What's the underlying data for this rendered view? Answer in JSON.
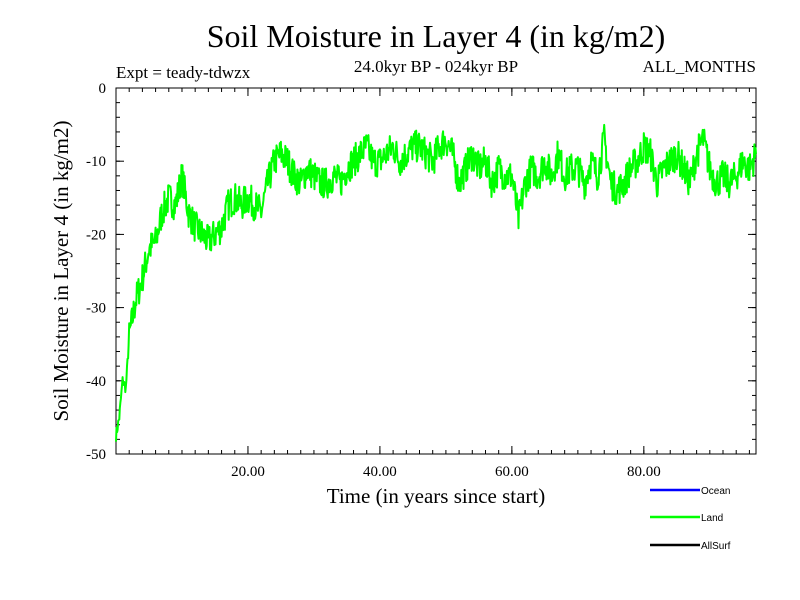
{
  "chart_data": {
    "type": "line",
    "title": "Soil Moisture in Layer 4 (in kg/m2)",
    "subtitle": "24.0kyr BP - 024kyr BP",
    "experiment": "Expt = teady-tdwzx",
    "months": "ALL_MONTHS",
    "xlabel": "Time (in years since start)",
    "ylabel": "Soil Moisture in Layer 4 (in kg/m2)",
    "xlim": [
      0,
      97
    ],
    "ylim": [
      -50,
      0
    ],
    "x_ticks": [
      20,
      40,
      60,
      80
    ],
    "x_tick_labels": [
      "20.00",
      "40.00",
      "60.00",
      "80.00"
    ],
    "y_ticks": [
      0,
      -10,
      -20,
      -30,
      -40,
      -50
    ],
    "y_tick_labels": [
      "0",
      "-10",
      "-20",
      "-30",
      "-40",
      "-50"
    ],
    "grid": false,
    "legend_position": "bottom-right",
    "series": [
      {
        "name": "Ocean",
        "color": "#0000ff",
        "values": []
      },
      {
        "name": "Land",
        "color": "#00ff00",
        "x": [
          0,
          0.5,
          1,
          1.5,
          2,
          3,
          4,
          5,
          6,
          7,
          8,
          9,
          10,
          11,
          12,
          13,
          14,
          15,
          16,
          17,
          18,
          19,
          20,
          21,
          22,
          23,
          24,
          25,
          26,
          27,
          28,
          29,
          30,
          31,
          32,
          33,
          34,
          35,
          36,
          37,
          38,
          39,
          40,
          41,
          42,
          43,
          44,
          45,
          46,
          47,
          48,
          49,
          50,
          51,
          52,
          53,
          54,
          55,
          56,
          57,
          58,
          59,
          60,
          61,
          62,
          63,
          64,
          65,
          66,
          67,
          68,
          69,
          70,
          71,
          72,
          73,
          74,
          75,
          76,
          77,
          78,
          79,
          80,
          81,
          82,
          83,
          84,
          85,
          86,
          87,
          88,
          89,
          90,
          91,
          92,
          93,
          94,
          95,
          96,
          97
        ],
        "values": [
          -47.5,
          -45,
          -40,
          -41,
          -34,
          -29,
          -26,
          -22,
          -21,
          -17,
          -15,
          -16,
          -12,
          -17,
          -19,
          -20,
          -21,
          -20,
          -19,
          -16,
          -15,
          -16,
          -15,
          -16,
          -17,
          -13,
          -10,
          -9,
          -10,
          -12,
          -13,
          -11,
          -12,
          -13,
          -13,
          -12,
          -13,
          -11,
          -10,
          -9,
          -8,
          -10,
          -10,
          -9,
          -8,
          -10,
          -9,
          -8,
          -8,
          -9,
          -10,
          -8,
          -7,
          -9,
          -13,
          -11,
          -9,
          -11,
          -10,
          -13,
          -11,
          -12,
          -12,
          -18,
          -13,
          -11,
          -12,
          -10,
          -12,
          -9,
          -12,
          -11,
          -11,
          -13,
          -10,
          -12,
          -7,
          -13,
          -14,
          -13,
          -11,
          -10,
          -8,
          -9,
          -13,
          -11,
          -10,
          -9,
          -11,
          -13,
          -9,
          -7,
          -11,
          -13,
          -12,
          -13,
          -12,
          -10,
          -11,
          -9
        ]
      },
      {
        "name": "AllSurf",
        "color": "#000000",
        "values": []
      }
    ]
  }
}
